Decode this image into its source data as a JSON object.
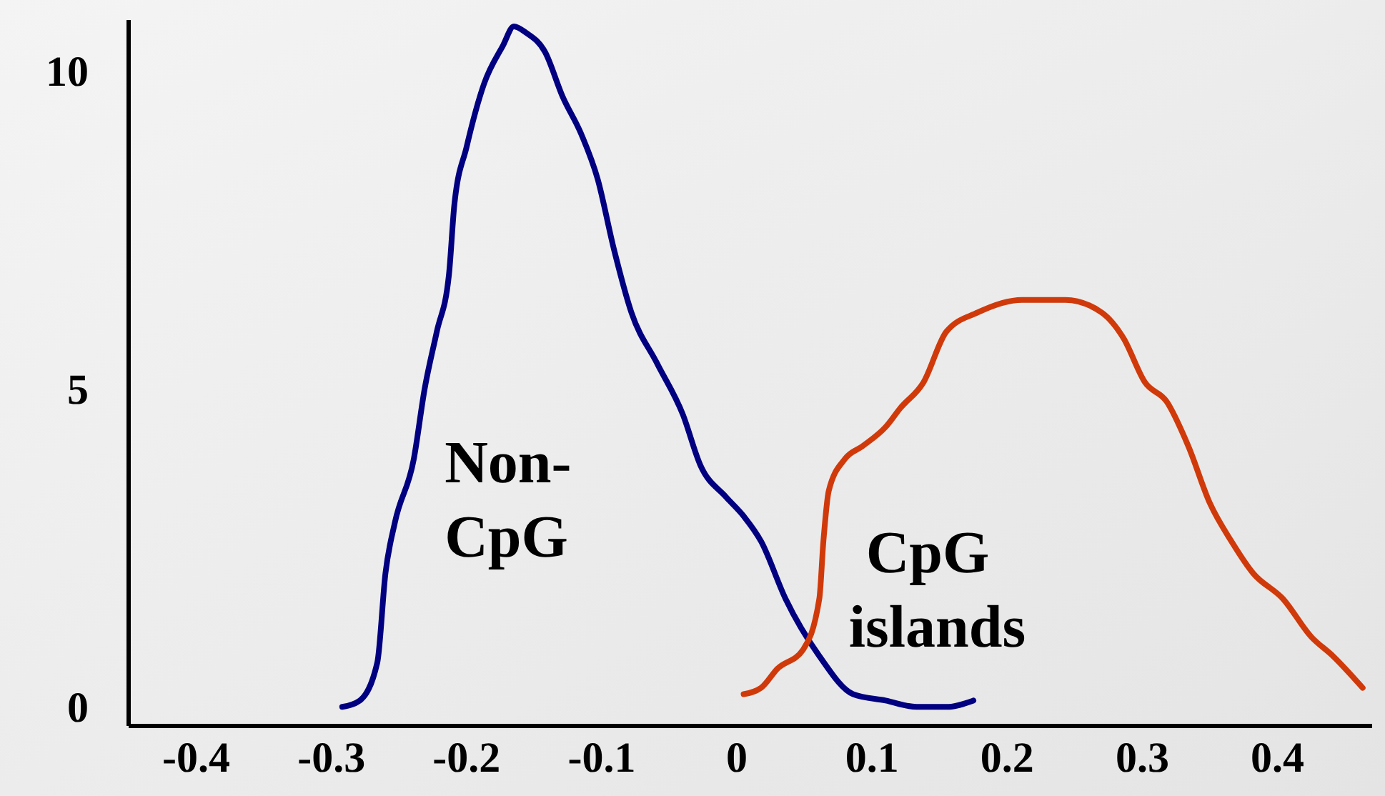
{
  "chart_data": {
    "type": "line",
    "xlim": [
      -0.45,
      0.47
    ],
    "xticks": [
      -0.4,
      -0.3,
      -0.2,
      -0.1,
      0,
      0.1,
      0.2,
      0.3,
      0.4
    ],
    "ylim": [
      -0.3,
      10.8
    ],
    "yticks": [
      0,
      5,
      10
    ],
    "grid": false,
    "marker": "none",
    "line_style": "solid",
    "series": [
      {
        "name": "Non-CpG",
        "color": "#000080",
        "x": [
          -0.292,
          -0.279,
          -0.266,
          -0.26,
          -0.253,
          -0.239,
          -0.231,
          -0.222,
          -0.213,
          -0.209,
          -0.2,
          -0.187,
          -0.173,
          -0.165,
          -0.156,
          -0.142,
          -0.129,
          -0.115,
          -0.103,
          -0.091,
          -0.078,
          -0.059,
          -0.04,
          -0.027,
          -0.008,
          0.005,
          0.018,
          0.036,
          0.061,
          0.086,
          0.11,
          0.133,
          0.155,
          0.175
        ],
        "values": [
          0,
          0.1,
          0.7,
          2.1,
          2.9,
          3.9,
          5.0,
          5.9,
          6.8,
          7.9,
          8.8,
          9.8,
          10.4,
          10.7,
          10.6,
          10.3,
          9.6,
          9.0,
          8.3,
          7.2,
          6.2,
          5.4,
          4.6,
          3.8,
          3.3,
          3.0,
          2.6,
          1.7,
          0.8,
          0.2,
          0.1,
          0,
          0,
          0.1
        ]
      },
      {
        "name": "CpG islands",
        "color": "#d03a0a",
        "x": [
          0.005,
          0.018,
          0.03,
          0.049,
          0.061,
          0.064,
          0.068,
          0.08,
          0.093,
          0.11,
          0.121,
          0.138,
          0.155,
          0.178,
          0.211,
          0.243,
          0.27,
          0.286,
          0.302,
          0.318,
          0.334,
          0.35,
          0.366,
          0.382,
          0.404,
          0.425,
          0.441,
          0.463
        ],
        "values": [
          0.2,
          0.3,
          0.6,
          0.9,
          1.7,
          2.6,
          3.4,
          3.9,
          4.1,
          4.4,
          4.7,
          5.1,
          5.9,
          6.2,
          6.4,
          6.4,
          6.2,
          5.8,
          5.1,
          4.8,
          4.1,
          3.2,
          2.6,
          2.1,
          1.7,
          1.1,
          0.8,
          0.3
        ]
      }
    ]
  }
}
